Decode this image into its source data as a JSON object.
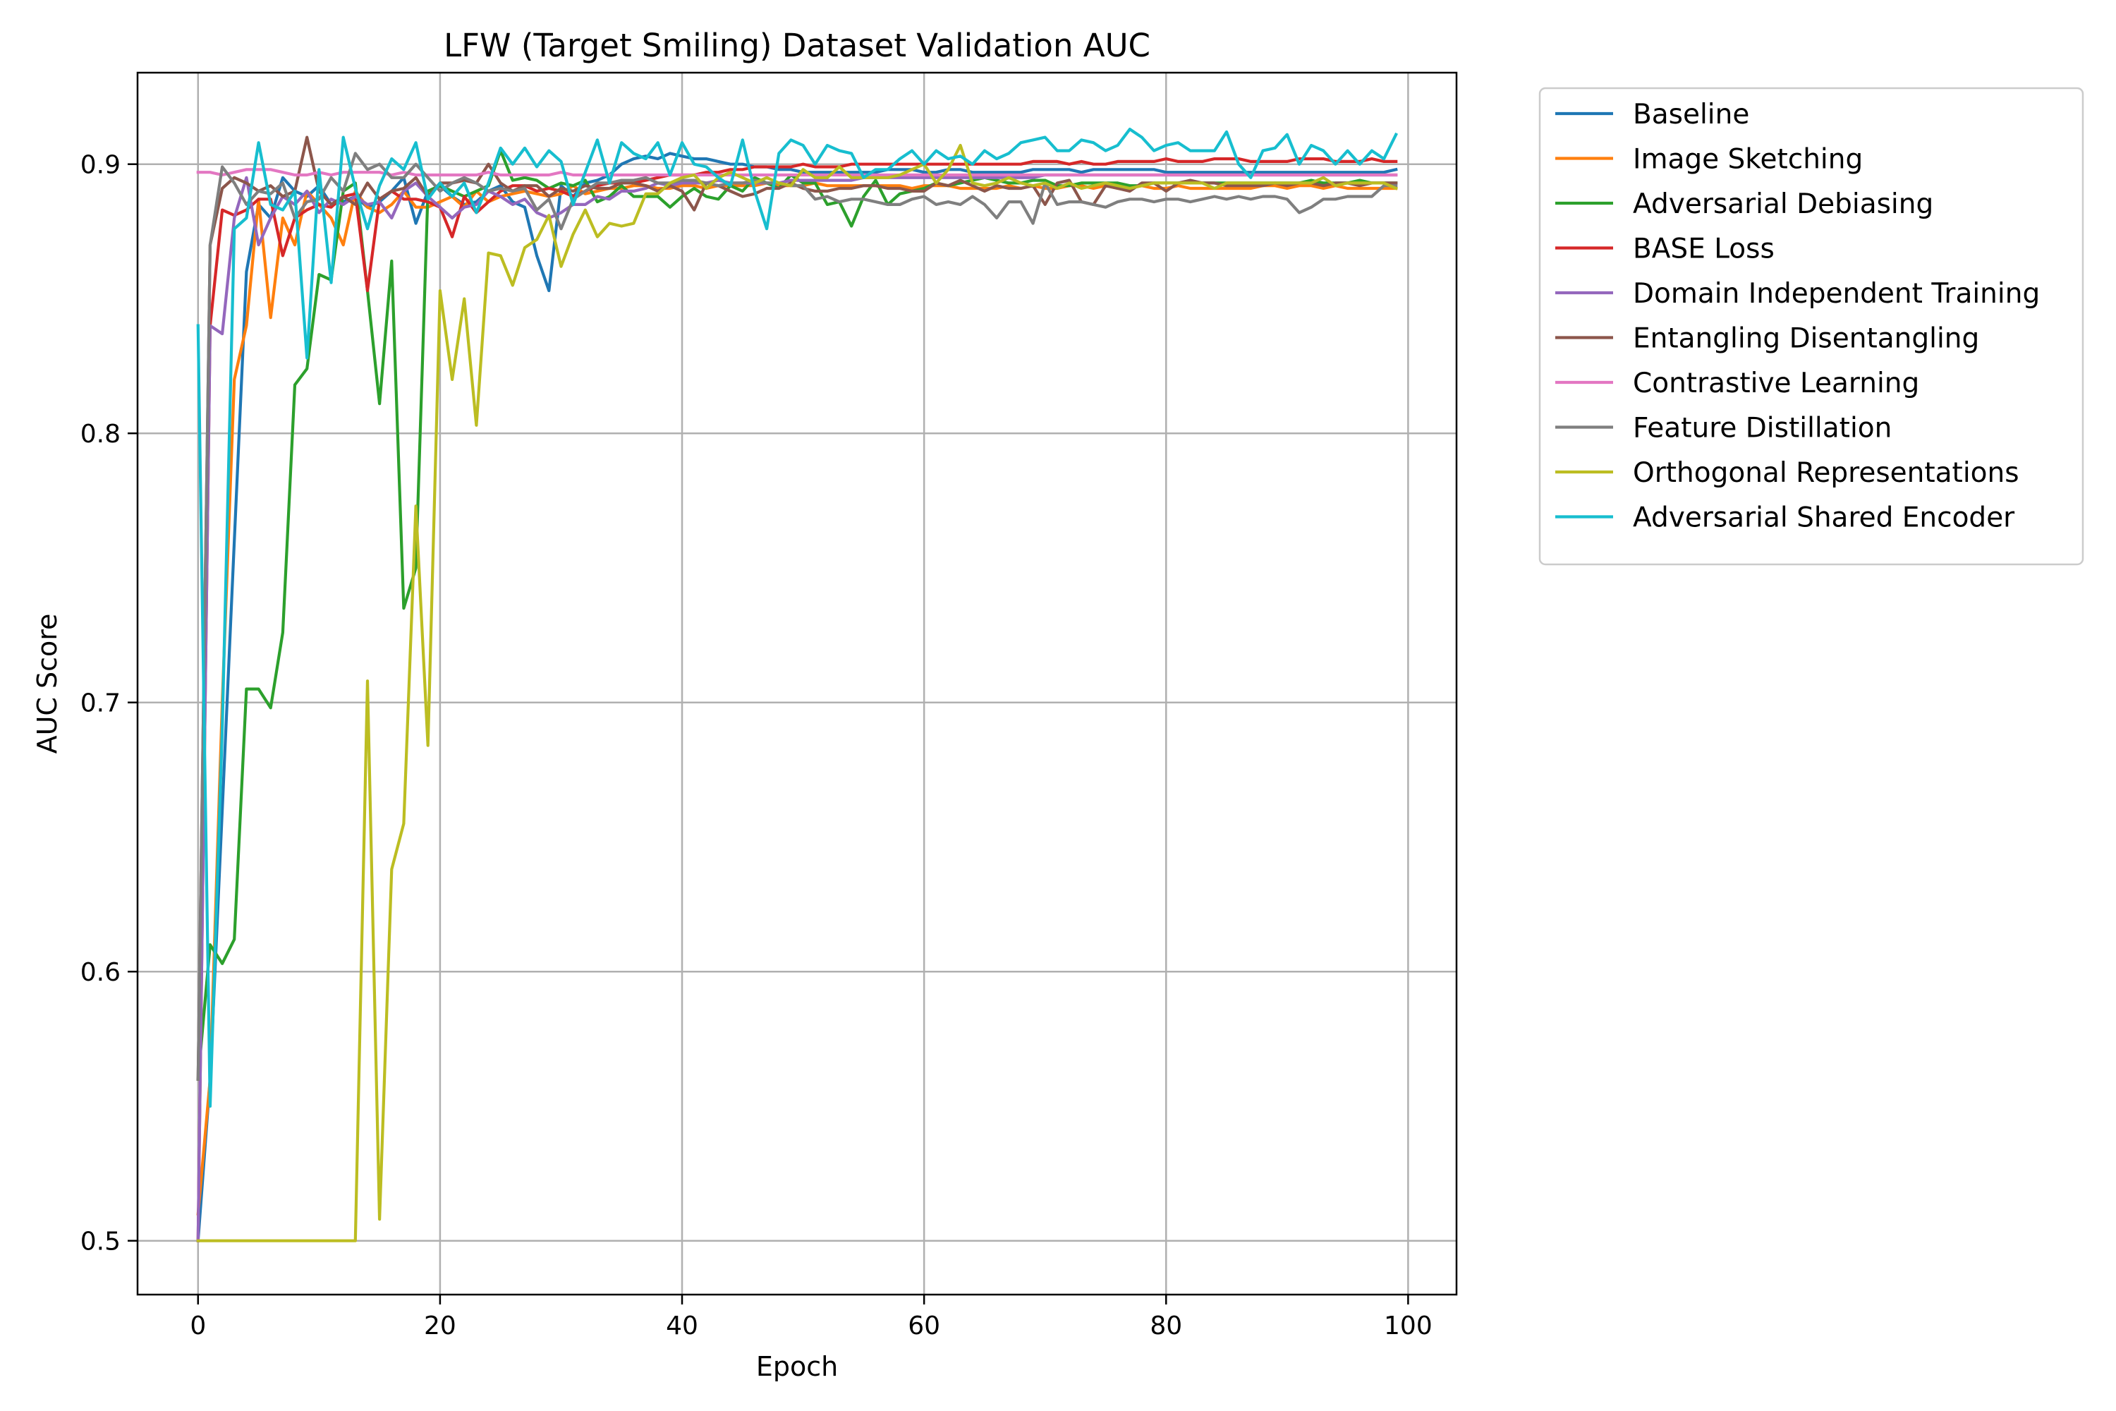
{
  "chart_data": {
    "type": "line",
    "title": "LFW (Target Smiling) Dataset Validation AUC",
    "xlabel": "Epoch",
    "ylabel": "AUC Score",
    "xlim": [
      -5,
      104
    ],
    "ylim": [
      0.48,
      0.934
    ],
    "xticks": [
      0,
      20,
      40,
      60,
      80,
      100
    ],
    "yticks": [
      0.5,
      0.6,
      0.7,
      0.8,
      0.9
    ],
    "xtick_labels": [
      "0",
      "20",
      "40",
      "60",
      "80",
      "100"
    ],
    "ytick_labels": [
      "0.5",
      "0.6",
      "0.7",
      "0.8",
      "0.9"
    ],
    "grid": true,
    "legend_position": "outside-right-top",
    "series": [
      {
        "name": "Baseline",
        "color": "#1f77b4",
        "values": [
          0.5,
          0.56,
          0.66,
          0.76,
          0.86,
          0.885,
          0.88,
          0.895,
          0.89,
          0.888,
          0.892,
          0.885,
          0.886,
          0.888,
          0.884,
          0.886,
          0.89,
          0.895,
          0.878,
          0.89,
          0.892,
          0.888,
          0.885,
          0.886,
          0.89,
          0.892,
          0.886,
          0.884,
          0.866,
          0.853,
          0.892,
          0.888,
          0.893,
          0.894,
          0.896,
          0.9,
          0.902,
          0.903,
          0.902,
          0.904,
          0.903,
          0.902,
          0.902,
          0.901,
          0.9,
          0.9,
          0.899,
          0.899,
          0.898,
          0.898,
          0.897,
          0.897,
          0.897,
          0.897,
          0.897,
          0.897,
          0.897,
          0.898,
          0.898,
          0.898,
          0.897,
          0.897,
          0.898,
          0.898,
          0.897,
          0.897,
          0.897,
          0.897,
          0.897,
          0.898,
          0.898,
          0.898,
          0.898,
          0.897,
          0.898,
          0.898,
          0.898,
          0.898,
          0.898,
          0.898,
          0.897,
          0.897,
          0.897,
          0.897,
          0.897,
          0.897,
          0.897,
          0.897,
          0.897,
          0.897,
          0.897,
          0.897,
          0.897,
          0.897,
          0.897,
          0.897,
          0.897,
          0.897,
          0.897,
          0.898
        ]
      },
      {
        "name": "Image Sketching",
        "color": "#ff7f0e",
        "values": [
          0.51,
          0.56,
          0.7,
          0.82,
          0.84,
          0.887,
          0.843,
          0.88,
          0.87,
          0.89,
          0.885,
          0.88,
          0.87,
          0.89,
          0.884,
          0.882,
          0.885,
          0.89,
          0.884,
          0.884,
          0.886,
          0.888,
          0.884,
          0.89,
          0.886,
          0.888,
          0.889,
          0.89,
          0.889,
          0.888,
          0.889,
          0.892,
          0.889,
          0.89,
          0.891,
          0.891,
          0.892,
          0.892,
          0.891,
          0.891,
          0.892,
          0.892,
          0.891,
          0.892,
          0.892,
          0.892,
          0.892,
          0.893,
          0.892,
          0.892,
          0.892,
          0.893,
          0.892,
          0.892,
          0.892,
          0.892,
          0.892,
          0.892,
          0.892,
          0.891,
          0.892,
          0.892,
          0.892,
          0.891,
          0.891,
          0.891,
          0.891,
          0.892,
          0.891,
          0.892,
          0.891,
          0.891,
          0.892,
          0.892,
          0.891,
          0.892,
          0.891,
          0.891,
          0.892,
          0.891,
          0.891,
          0.892,
          0.891,
          0.891,
          0.891,
          0.891,
          0.891,
          0.891,
          0.892,
          0.892,
          0.891,
          0.892,
          0.892,
          0.891,
          0.892,
          0.891,
          0.891,
          0.891,
          0.891,
          0.891
        ]
      },
      {
        "name": "Adversarial Debiasing",
        "color": "#2ca02c",
        "values": [
          0.56,
          0.61,
          0.603,
          0.612,
          0.705,
          0.705,
          0.698,
          0.726,
          0.818,
          0.824,
          0.859,
          0.857,
          0.89,
          0.893,
          0.853,
          0.811,
          0.864,
          0.735,
          0.75,
          0.89,
          0.892,
          0.89,
          0.888,
          0.89,
          0.892,
          0.905,
          0.894,
          0.895,
          0.894,
          0.891,
          0.893,
          0.892,
          0.894,
          0.886,
          0.888,
          0.892,
          0.888,
          0.888,
          0.888,
          0.884,
          0.888,
          0.891,
          0.888,
          0.887,
          0.892,
          0.89,
          0.895,
          0.893,
          0.891,
          0.896,
          0.893,
          0.893,
          0.885,
          0.886,
          0.877,
          0.888,
          0.894,
          0.885,
          0.889,
          0.89,
          0.891,
          0.893,
          0.892,
          0.893,
          0.894,
          0.895,
          0.894,
          0.893,
          0.893,
          0.894,
          0.894,
          0.892,
          0.892,
          0.893,
          0.893,
          0.893,
          0.893,
          0.892,
          0.892,
          0.893,
          0.893,
          0.893,
          0.893,
          0.893,
          0.893,
          0.893,
          0.893,
          0.893,
          0.893,
          0.893,
          0.893,
          0.893,
          0.894,
          0.893,
          0.893,
          0.893,
          0.894,
          0.893,
          0.893,
          0.893
        ]
      },
      {
        "name": "BASE Loss",
        "color": "#d62728",
        "values": [
          0.5,
          0.84,
          0.883,
          0.881,
          0.883,
          0.887,
          0.887,
          0.866,
          0.88,
          0.883,
          0.885,
          0.884,
          0.888,
          0.889,
          0.853,
          0.887,
          0.89,
          0.887,
          0.887,
          0.886,
          0.884,
          0.873,
          0.888,
          0.882,
          0.886,
          0.89,
          0.892,
          0.892,
          0.89,
          0.891,
          0.89,
          0.888,
          0.89,
          0.892,
          0.893,
          0.893,
          0.893,
          0.894,
          0.895,
          0.896,
          0.896,
          0.896,
          0.897,
          0.897,
          0.898,
          0.898,
          0.899,
          0.899,
          0.899,
          0.899,
          0.9,
          0.899,
          0.899,
          0.899,
          0.9,
          0.9,
          0.9,
          0.9,
          0.9,
          0.9,
          0.9,
          0.9,
          0.9,
          0.9,
          0.9,
          0.9,
          0.9,
          0.9,
          0.9,
          0.901,
          0.901,
          0.901,
          0.9,
          0.901,
          0.9,
          0.9,
          0.901,
          0.901,
          0.901,
          0.901,
          0.902,
          0.901,
          0.901,
          0.901,
          0.902,
          0.902,
          0.902,
          0.901,
          0.901,
          0.901,
          0.901,
          0.902,
          0.902,
          0.902,
          0.901,
          0.901,
          0.901,
          0.902,
          0.901,
          0.901
        ]
      },
      {
        "name": "Domain Independent Training",
        "color": "#9467bd",
        "values": [
          0.5,
          0.84,
          0.837,
          0.88,
          0.895,
          0.87,
          0.88,
          0.888,
          0.885,
          0.89,
          0.882,
          0.887,
          0.885,
          0.888,
          0.885,
          0.886,
          0.88,
          0.89,
          0.893,
          0.888,
          0.884,
          0.88,
          0.884,
          0.885,
          0.89,
          0.888,
          0.885,
          0.887,
          0.882,
          0.88,
          0.882,
          0.885,
          0.885,
          0.888,
          0.887,
          0.89,
          0.89,
          0.891,
          0.893,
          0.892,
          0.893,
          0.893,
          0.893,
          0.894,
          0.893,
          0.893,
          0.893,
          0.893,
          0.893,
          0.894,
          0.894,
          0.894,
          0.894,
          0.894,
          0.894,
          0.895,
          0.895,
          0.895,
          0.895,
          0.895,
          0.895,
          0.895,
          0.895,
          0.895,
          0.895,
          0.895,
          0.895,
          0.895,
          0.895,
          0.895,
          0.896,
          0.896,
          0.896,
          0.896,
          0.896,
          0.896,
          0.896,
          0.896,
          0.896,
          0.896,
          0.896,
          0.896,
          0.896,
          0.896,
          0.896,
          0.896,
          0.896,
          0.896,
          0.896,
          0.896,
          0.896,
          0.896,
          0.896,
          0.896,
          0.896,
          0.896,
          0.896,
          0.896,
          0.896,
          0.896
        ]
      },
      {
        "name": "Entangling Disentangling",
        "color": "#8c564b",
        "values": [
          0.56,
          0.87,
          0.891,
          0.895,
          0.893,
          0.89,
          0.892,
          0.888,
          0.89,
          0.91,
          0.89,
          0.885,
          0.888,
          0.885,
          0.893,
          0.887,
          0.89,
          0.891,
          0.895,
          0.888,
          0.893,
          0.893,
          0.894,
          0.893,
          0.9,
          0.893,
          0.89,
          0.892,
          0.892,
          0.888,
          0.891,
          0.89,
          0.892,
          0.891,
          0.891,
          0.893,
          0.893,
          0.892,
          0.89,
          0.892,
          0.89,
          0.883,
          0.893,
          0.892,
          0.89,
          0.888,
          0.889,
          0.891,
          0.891,
          0.893,
          0.891,
          0.89,
          0.89,
          0.891,
          0.891,
          0.892,
          0.892,
          0.891,
          0.891,
          0.89,
          0.89,
          0.893,
          0.892,
          0.894,
          0.892,
          0.89,
          0.892,
          0.891,
          0.891,
          0.892,
          0.885,
          0.893,
          0.894,
          0.886,
          0.885,
          0.892,
          0.891,
          0.89,
          0.893,
          0.893,
          0.89,
          0.893,
          0.894,
          0.893,
          0.893,
          0.892,
          0.892,
          0.892,
          0.892,
          0.893,
          0.892,
          0.893,
          0.893,
          0.892,
          0.893,
          0.893,
          0.892,
          0.893,
          0.893,
          0.893
        ]
      },
      {
        "name": "Contrastive Learning",
        "color": "#e377c2",
        "values": [
          0.897,
          0.897,
          0.896,
          0.897,
          0.898,
          0.898,
          0.898,
          0.897,
          0.896,
          0.896,
          0.897,
          0.896,
          0.897,
          0.897,
          0.897,
          0.897,
          0.896,
          0.897,
          0.896,
          0.896,
          0.896,
          0.896,
          0.896,
          0.896,
          0.897,
          0.896,
          0.896,
          0.896,
          0.896,
          0.896,
          0.897,
          0.896,
          0.896,
          0.896,
          0.896,
          0.896,
          0.896,
          0.896,
          0.896,
          0.896,
          0.896,
          0.896,
          0.896,
          0.896,
          0.896,
          0.896,
          0.896,
          0.896,
          0.896,
          0.896,
          0.896,
          0.896,
          0.896,
          0.896,
          0.896,
          0.896,
          0.896,
          0.896,
          0.896,
          0.896,
          0.896,
          0.896,
          0.896,
          0.896,
          0.896,
          0.896,
          0.896,
          0.896,
          0.896,
          0.896,
          0.896,
          0.896,
          0.896,
          0.896,
          0.896,
          0.896,
          0.896,
          0.896,
          0.896,
          0.896,
          0.896,
          0.896,
          0.896,
          0.896,
          0.896,
          0.896,
          0.896,
          0.896,
          0.896,
          0.896,
          0.896,
          0.896,
          0.896,
          0.896,
          0.896,
          0.896,
          0.896,
          0.896,
          0.896,
          0.896
        ]
      },
      {
        "name": "Feature Distillation",
        "color": "#7f7f7f",
        "values": [
          0.56,
          0.87,
          0.899,
          0.893,
          0.885,
          0.89,
          0.889,
          0.893,
          0.88,
          0.886,
          0.887,
          0.895,
          0.89,
          0.904,
          0.898,
          0.9,
          0.895,
          0.895,
          0.9,
          0.895,
          0.89,
          0.893,
          0.895,
          0.893,
          0.89,
          0.891,
          0.89,
          0.891,
          0.883,
          0.887,
          0.876,
          0.887,
          0.89,
          0.893,
          0.893,
          0.894,
          0.894,
          0.895,
          0.893,
          0.893,
          0.894,
          0.894,
          0.893,
          0.892,
          0.893,
          0.893,
          0.894,
          0.893,
          0.893,
          0.892,
          0.892,
          0.887,
          0.888,
          0.886,
          0.887,
          0.887,
          0.886,
          0.885,
          0.885,
          0.887,
          0.888,
          0.885,
          0.886,
          0.885,
          0.888,
          0.885,
          0.88,
          0.886,
          0.886,
          0.878,
          0.893,
          0.885,
          0.886,
          0.886,
          0.885,
          0.884,
          0.886,
          0.887,
          0.887,
          0.886,
          0.887,
          0.887,
          0.886,
          0.887,
          0.888,
          0.887,
          0.888,
          0.887,
          0.888,
          0.888,
          0.887,
          0.882,
          0.884,
          0.887,
          0.887,
          0.888,
          0.888,
          0.888,
          0.892,
          0.892
        ]
      },
      {
        "name": "Orthogonal Representations",
        "color": "#bcbd22",
        "values": [
          0.5,
          0.5,
          0.5,
          0.5,
          0.5,
          0.5,
          0.5,
          0.5,
          0.5,
          0.5,
          0.5,
          0.5,
          0.5,
          0.5,
          0.708,
          0.508,
          0.638,
          0.655,
          0.773,
          0.684,
          0.853,
          0.82,
          0.85,
          0.803,
          0.867,
          0.866,
          0.855,
          0.869,
          0.872,
          0.881,
          0.862,
          0.874,
          0.883,
          0.873,
          0.878,
          0.877,
          0.878,
          0.889,
          0.889,
          0.893,
          0.895,
          0.896,
          0.891,
          0.895,
          0.897,
          0.895,
          0.893,
          0.895,
          0.893,
          0.892,
          0.898,
          0.895,
          0.895,
          0.899,
          0.895,
          0.895,
          0.895,
          0.895,
          0.896,
          0.898,
          0.9,
          0.893,
          0.898,
          0.907,
          0.893,
          0.892,
          0.893,
          0.895,
          0.893,
          0.892,
          0.893,
          0.891,
          0.893,
          0.891,
          0.892,
          0.893,
          0.892,
          0.891,
          0.892,
          0.893,
          0.893,
          0.893,
          0.893,
          0.893,
          0.891,
          0.893,
          0.893,
          0.893,
          0.893,
          0.893,
          0.893,
          0.893,
          0.893,
          0.895,
          0.892,
          0.893,
          0.893,
          0.893,
          0.893,
          0.891
        ]
      },
      {
        "name": "Adversarial Shared Encoder",
        "color": "#17becf",
        "values": [
          0.84,
          0.55,
          0.69,
          0.876,
          0.88,
          0.908,
          0.885,
          0.883,
          0.89,
          0.828,
          0.898,
          0.856,
          0.91,
          0.891,
          0.876,
          0.892,
          0.902,
          0.898,
          0.908,
          0.887,
          0.893,
          0.888,
          0.893,
          0.882,
          0.893,
          0.906,
          0.9,
          0.906,
          0.899,
          0.905,
          0.901,
          0.885,
          0.897,
          0.909,
          0.893,
          0.908,
          0.904,
          0.902,
          0.908,
          0.896,
          0.908,
          0.9,
          0.899,
          0.895,
          0.892,
          0.909,
          0.89,
          0.876,
          0.904,
          0.909,
          0.907,
          0.9,
          0.907,
          0.905,
          0.904,
          0.895,
          0.898,
          0.898,
          0.902,
          0.905,
          0.9,
          0.905,
          0.902,
          0.903,
          0.9,
          0.905,
          0.902,
          0.904,
          0.908,
          0.909,
          0.91,
          0.905,
          0.905,
          0.909,
          0.908,
          0.905,
          0.907,
          0.913,
          0.91,
          0.905,
          0.907,
          0.908,
          0.905,
          0.905,
          0.905,
          0.912,
          0.9,
          0.895,
          0.905,
          0.906,
          0.911,
          0.9,
          0.907,
          0.905,
          0.9,
          0.905,
          0.9,
          0.905,
          0.902,
          0.911
        ]
      }
    ]
  }
}
